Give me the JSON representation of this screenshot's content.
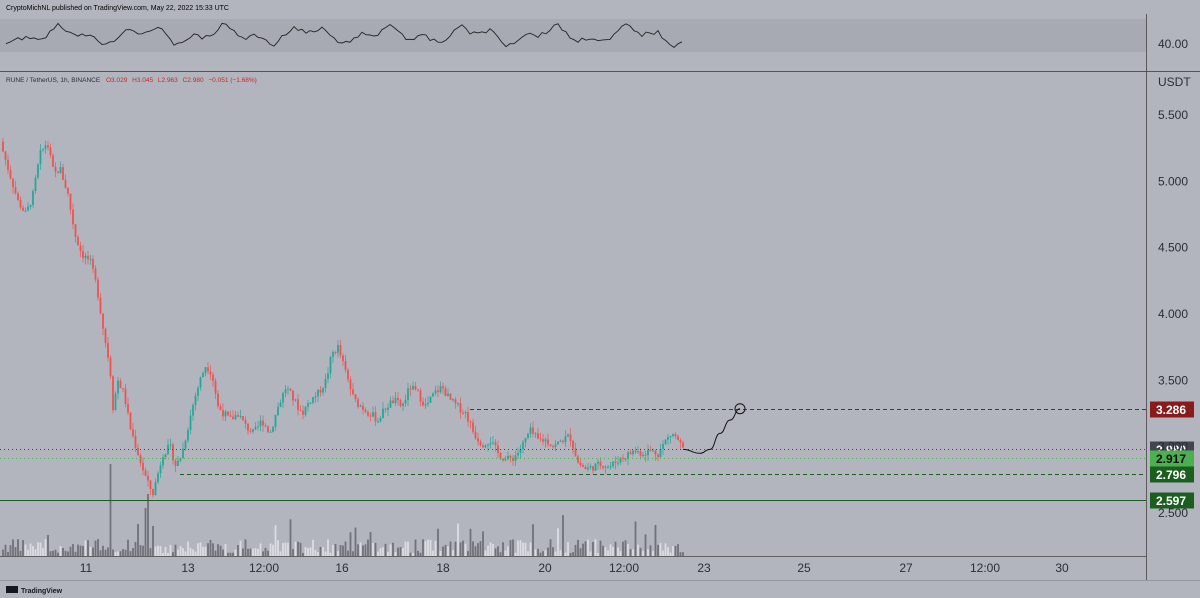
{
  "header": {
    "publisher": "CryptoMichNL published on TradingView.com, May 22, 2022 15:33 UTC"
  },
  "symbol_info": {
    "title": "RUNE / TetherUS, 1h, BINANCE",
    "open": "O3.029",
    "high": "H3.045",
    "low": "L2.963",
    "close": "C2.980",
    "change": "−0.051 (−1.68%)"
  },
  "rsi_panel": {
    "value_label": "40.00"
  },
  "price_axis": {
    "currency": "USDT"
  },
  "footer": {
    "brand": "TradingView"
  },
  "colors": {
    "background": "#b2b5be",
    "up": "#26a69a",
    "down": "#ef5350",
    "resistance": "#8b1a1a",
    "support_light": "#4caf50",
    "support_dark": "#1b5e20",
    "last_price": "#434651"
  },
  "chart_data": {
    "type": "candlestick",
    "title": "RUNE / TetherUS, 1h, BINANCE",
    "x_tick_labels": [
      "11",
      "13",
      "12:00",
      "16",
      "18",
      "20",
      "12:00",
      "23",
      "25",
      "27",
      "12:00",
      "30"
    ],
    "y_tick_labels": [
      "5.500",
      "5.000",
      "4.500",
      "4.000",
      "3.500",
      "3.000",
      "2.500"
    ],
    "ylim": [
      2.2,
      5.7
    ],
    "price_path": [
      [
        0,
        5.3
      ],
      [
        10,
        5.05
      ],
      [
        18,
        4.85
      ],
      [
        26,
        4.75
      ],
      [
        33,
        4.9
      ],
      [
        40,
        5.2
      ],
      [
        47,
        5.3
      ],
      [
        54,
        5.05
      ],
      [
        60,
        5.1
      ],
      [
        68,
        4.9
      ],
      [
        75,
        4.6
      ],
      [
        82,
        4.45
      ],
      [
        90,
        4.4
      ],
      [
        97,
        4.2
      ],
      [
        104,
        3.85
      ],
      [
        110,
        3.6
      ],
      [
        113,
        3.3
      ],
      [
        118,
        3.5
      ],
      [
        124,
        3.4
      ],
      [
        130,
        3.15
      ],
      [
        136,
        3.0
      ],
      [
        142,
        2.85
      ],
      [
        148,
        2.72
      ],
      [
        153,
        2.65
      ],
      [
        158,
        2.8
      ],
      [
        163,
        2.95
      ],
      [
        170,
        3.0
      ],
      [
        176,
        2.85
      ],
      [
        182,
        2.95
      ],
      [
        188,
        3.15
      ],
      [
        194,
        3.35
      ],
      [
        200,
        3.5
      ],
      [
        206,
        3.62
      ],
      [
        212,
        3.55
      ],
      [
        218,
        3.3
      ],
      [
        224,
        3.25
      ],
      [
        230,
        3.2
      ],
      [
        238,
        3.25
      ],
      [
        246,
        3.15
      ],
      [
        254,
        3.1
      ],
      [
        262,
        3.2
      ],
      [
        270,
        3.1
      ],
      [
        278,
        3.3
      ],
      [
        286,
        3.45
      ],
      [
        294,
        3.35
      ],
      [
        302,
        3.25
      ],
      [
        310,
        3.35
      ],
      [
        318,
        3.4
      ],
      [
        326,
        3.5
      ],
      [
        332,
        3.7
      ],
      [
        338,
        3.75
      ],
      [
        346,
        3.55
      ],
      [
        354,
        3.35
      ],
      [
        362,
        3.3
      ],
      [
        370,
        3.25
      ],
      [
        378,
        3.2
      ],
      [
        386,
        3.3
      ],
      [
        394,
        3.35
      ],
      [
        402,
        3.3
      ],
      [
        410,
        3.45
      ],
      [
        418,
        3.4
      ],
      [
        426,
        3.3
      ],
      [
        434,
        3.4
      ],
      [
        442,
        3.45
      ],
      [
        450,
        3.35
      ],
      [
        458,
        3.3
      ],
      [
        466,
        3.25
      ],
      [
        474,
        3.1
      ],
      [
        482,
        3.02
      ],
      [
        490,
        3.05
      ],
      [
        498,
        2.95
      ],
      [
        506,
        2.9
      ],
      [
        514,
        2.92
      ],
      [
        522,
        3.0
      ],
      [
        530,
        3.12
      ],
      [
        538,
        3.05
      ],
      [
        546,
        3.05
      ],
      [
        554,
        3.0
      ],
      [
        562,
        3.05
      ],
      [
        570,
        3.08
      ],
      [
        578,
        2.88
      ],
      [
        586,
        2.83
      ],
      [
        594,
        2.85
      ],
      [
        602,
        2.87
      ],
      [
        610,
        2.85
      ],
      [
        618,
        2.9
      ],
      [
        626,
        2.93
      ],
      [
        634,
        2.97
      ],
      [
        642,
        2.95
      ],
      [
        650,
        2.97
      ],
      [
        658,
        2.95
      ],
      [
        666,
        3.05
      ],
      [
        672,
        3.1
      ],
      [
        678,
        3.05
      ],
      [
        683,
        2.98
      ]
    ],
    "levels": [
      {
        "price": 3.286,
        "label": "3.286",
        "style": "dashed",
        "color": "#8b1a1a"
      },
      {
        "price": 2.98,
        "label": "2.980",
        "style": "dotted",
        "color": "#434651"
      },
      {
        "price": 2.917,
        "label": "2.917",
        "style": "dotted",
        "color": "#4caf50"
      },
      {
        "price": 2.796,
        "label": "2.796",
        "style": "dashed",
        "color": "#1b5e20"
      },
      {
        "price": 2.597,
        "label": "2.597",
        "style": "solid",
        "color": "#1b5e20"
      }
    ],
    "projection": [
      [
        683,
        2.98
      ],
      [
        700,
        2.95
      ],
      [
        710,
        2.98
      ],
      [
        720,
        3.1
      ],
      [
        730,
        3.2
      ],
      [
        740,
        3.286
      ]
    ]
  }
}
